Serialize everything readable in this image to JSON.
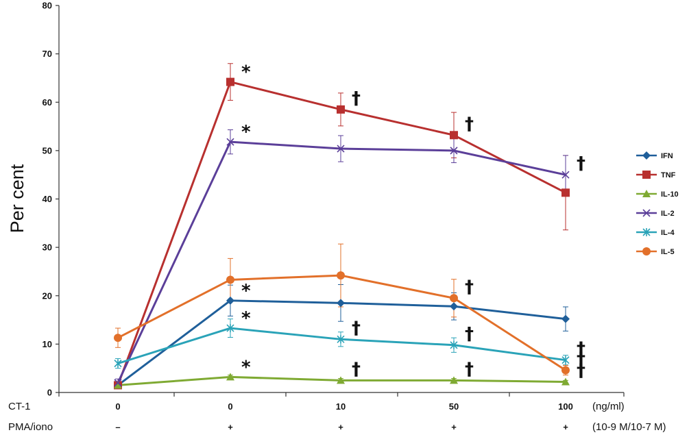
{
  "chart_data": {
    "type": "line",
    "title": "",
    "ylabel": "Per cent",
    "xlabel": "",
    "ylim": [
      0,
      80
    ],
    "yticks": [
      "0",
      "10",
      "20",
      "30",
      "40",
      "50",
      "60",
      "70",
      "80"
    ],
    "rows": [
      {
        "label": "CT-1",
        "values": [
          "0",
          "0",
          "10",
          "50",
          "100"
        ],
        "unit": "(ng/ml)"
      },
      {
        "label": "PMA/iono",
        "values": [
          "–",
          "+",
          "+",
          "+",
          "+"
        ],
        "unit": "(10-9 M/10-7 M)"
      }
    ],
    "legend_position": "right",
    "series": [
      {
        "name": "IFN",
        "color": "#1f5f9a",
        "marker": "diamond",
        "values": [
          1.5,
          19,
          18.5,
          17.8,
          15.2
        ],
        "errors": [
          0.5,
          3.2,
          3.8,
          2.8,
          2.5
        ],
        "annotations": [
          null,
          "*",
          null,
          null,
          null
        ]
      },
      {
        "name": "TNF",
        "color": "#b8302f",
        "marker": "square",
        "values": [
          1.5,
          64.2,
          58.5,
          53.2,
          41.3
        ],
        "errors": [
          0.5,
          3.8,
          3.4,
          4.7,
          7.7
        ],
        "annotations": [
          null,
          "*",
          "†",
          "†",
          null
        ]
      },
      {
        "name": "IL-10",
        "color": "#7faa33",
        "marker": "triangle",
        "values": [
          1.5,
          3.2,
          2.5,
          2.5,
          2.2
        ],
        "errors": [
          0.3,
          0.4,
          0.4,
          0.4,
          0.3
        ],
        "annotations": [
          null,
          "*",
          "†",
          "†",
          "†"
        ]
      },
      {
        "name": "IL-2",
        "color": "#5b3f99",
        "marker": "x",
        "values": [
          2.0,
          51.8,
          50.4,
          50.0,
          45.0
        ],
        "errors": [
          0.8,
          2.5,
          2.7,
          2.5,
          4.0
        ],
        "annotations": [
          null,
          "*",
          null,
          null,
          "†"
        ]
      },
      {
        "name": "IL-4",
        "color": "#2aa3b8",
        "marker": "star",
        "values": [
          6.0,
          13.3,
          11.0,
          9.8,
          6.7
        ],
        "errors": [
          1.0,
          1.9,
          1.5,
          1.5,
          1.0
        ],
        "annotations": [
          null,
          "*",
          "†",
          "†",
          "†"
        ]
      },
      {
        "name": "IL-5",
        "color": "#e2702a",
        "marker": "circle",
        "values": [
          11.3,
          23.3,
          24.2,
          19.5,
          4.6
        ],
        "errors": [
          2.0,
          4.4,
          6.5,
          3.9,
          1.0
        ],
        "annotations": [
          null,
          null,
          null,
          "†",
          "†"
        ]
      }
    ]
  }
}
